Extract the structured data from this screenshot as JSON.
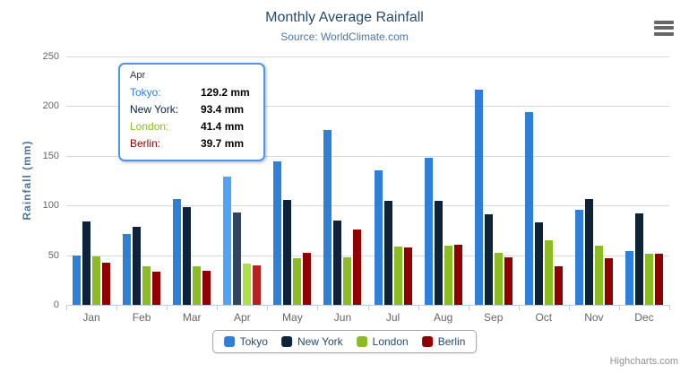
{
  "chart_data": {
    "type": "bar",
    "title": "Monthly Average Rainfall",
    "subtitle": "Source: WorldClimate.com",
    "xlabel": "",
    "ylabel": "Rainfall (mm)",
    "ylim": [
      0,
      250
    ],
    "ytick_step": 50,
    "grid": true,
    "legend_position": "bottom",
    "categories": [
      "Jan",
      "Feb",
      "Mar",
      "Apr",
      "May",
      "Jun",
      "Jul",
      "Aug",
      "Sep",
      "Oct",
      "Nov",
      "Dec"
    ],
    "series": [
      {
        "name": "Tokyo",
        "color": "#2f7ed8",
        "values": [
          49.9,
          71.5,
          106.4,
          129.2,
          144.0,
          176.0,
          135.6,
          148.5,
          216.4,
          194.1,
          95.6,
          54.4
        ]
      },
      {
        "name": "New York",
        "color": "#0d233a",
        "values": [
          83.6,
          78.8,
          98.5,
          93.4,
          106.0,
          84.5,
          105.0,
          104.3,
          91.2,
          83.5,
          106.6,
          92.3
        ]
      },
      {
        "name": "London",
        "color": "#8bbc21",
        "values": [
          48.9,
          38.8,
          39.3,
          41.4,
          47.0,
          48.3,
          59.0,
          59.6,
          52.4,
          65.2,
          59.3,
          51.2
        ]
      },
      {
        "name": "Berlin",
        "color": "#910000",
        "values": [
          42.4,
          33.2,
          34.5,
          39.7,
          52.6,
          75.5,
          57.4,
          60.4,
          47.6,
          39.1,
          46.8,
          51.1
        ]
      }
    ],
    "highlighted_category": "Apr",
    "highlighted_category_index": 3
  },
  "tooltip": {
    "category": "Apr",
    "rows": [
      {
        "label": "Tokyo:",
        "value": "129.2 mm",
        "color": "#2f7ed8"
      },
      {
        "label": "New York:",
        "value": "93.4 mm",
        "color": "#0d233a"
      },
      {
        "label": "London:",
        "value": "41.4 mm",
        "color": "#8bbc21"
      },
      {
        "label": "Berlin:",
        "value": "39.7 mm",
        "color": "#910000"
      }
    ]
  },
  "export_menu_icon": "hamburger-menu-icon",
  "credits": "Highcharts.com",
  "theme": {
    "background": "#ffffff",
    "title_color": "#274b6d",
    "subtitle_color": "#4d759e",
    "axis_title_color": "#4d759e",
    "axis_label_color": "#666666",
    "gridline_color": "#d8d8d8",
    "axis_line_color": "#c0d0e0",
    "tooltip_border_color": "#4a96ee",
    "legend_border_color": "#a7a7a7",
    "legend_text_color": "#274b6d",
    "credits_color": "#909090",
    "hover_brighten_amount": 35
  }
}
